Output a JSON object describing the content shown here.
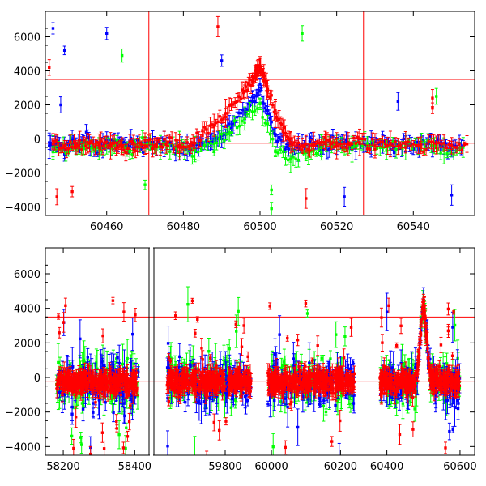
{
  "chart_data": [
    {
      "type": "scatter",
      "panel": "top",
      "xlim": [
        60444,
        60556
      ],
      "ylim": [
        -4500,
        7500
      ],
      "xticks": [
        60460,
        60480,
        60500,
        60520,
        60540
      ],
      "yticks": [
        -4000,
        -2000,
        0,
        2000,
        4000,
        6000
      ],
      "xtick_labels": [
        "60460",
        "60480",
        "60500",
        "60520",
        "60540"
      ],
      "ytick_labels": [
        "−4000",
        "−2000",
        "0",
        "2000",
        "4000",
        "6000"
      ],
      "hlines": [
        3500,
        -250
      ],
      "vlines": [
        60471,
        60527
      ],
      "colors": {
        "blue": "#0000ff",
        "green": "#00ff00",
        "red": "#ff0000",
        "ref": "#ff0000"
      },
      "series": [
        {
          "color": "blue",
          "x": [
            60445,
            60447,
            60449,
            60451,
            60453,
            60455,
            60457,
            60459,
            60461,
            60463,
            60465,
            60467,
            60469,
            60472,
            60475,
            60478,
            60481,
            60484,
            60487,
            60490,
            60493,
            60496,
            60498,
            60500,
            60502,
            60504,
            60507,
            60510,
            60513,
            60516,
            60519,
            60522,
            60525,
            60529,
            60532,
            60535,
            60538,
            60541,
            60544,
            60547,
            60550,
            60553
          ],
          "y": [
            -400,
            -300,
            -600,
            -200,
            -500,
            300,
            -700,
            -400,
            -300,
            -200,
            -500,
            -300,
            -400,
            -200,
            -300,
            -600,
            -500,
            -300,
            -200,
            200,
            800,
            1600,
            2200,
            2800,
            1700,
            200,
            -300,
            -500,
            -200,
            -400,
            -300,
            -200,
            -400,
            -300,
            -200,
            -500,
            -300,
            -400,
            -200,
            -300,
            -600,
            -400
          ]
        },
        {
          "color": "green",
          "x": [
            60446,
            60450,
            60454,
            60458,
            60462,
            60466,
            60470,
            60474,
            60479,
            60483,
            60488,
            60492,
            60496,
            60500,
            60504,
            60508,
            60512,
            60516,
            60520,
            60524,
            60528,
            60533,
            60538,
            60543,
            60548,
            60553
          ],
          "y": [
            -500,
            -800,
            -300,
            -600,
            -400,
            -700,
            -300,
            -500,
            -400,
            -600,
            -300,
            300,
            1200,
            2100,
            -700,
            -1200,
            -800,
            -500,
            -400,
            -600,
            -300,
            -500,
            -400,
            -300,
            -700,
            -500
          ]
        },
        {
          "color": "red",
          "x": [
            60446,
            60449,
            60452,
            60455,
            60458,
            60461,
            60464,
            60467,
            60470,
            60473,
            60476,
            60479,
            60482,
            60485,
            60488,
            60491,
            60494,
            60496,
            60498,
            60499,
            60500,
            60501,
            60502,
            60504,
            60506,
            60508,
            60511,
            60514,
            60517,
            60520,
            60523,
            60526,
            60530,
            60534,
            60538,
            60542,
            60546,
            60550,
            60554
          ],
          "y": [
            -300,
            -400,
            -500,
            -200,
            -300,
            -400,
            -500,
            -300,
            -400,
            -300,
            -200,
            -500,
            -400,
            200,
            800,
            1500,
            2200,
            2800,
            3400,
            3900,
            4300,
            3700,
            2800,
            1500,
            500,
            -200,
            -400,
            -300,
            -200,
            -400,
            -300,
            -200,
            -400,
            -300,
            -200,
            -500,
            -300,
            -400,
            -300
          ]
        }
      ],
      "outliers": [
        {
          "color": "blue",
          "x": 60446,
          "y": 6500
        },
        {
          "color": "blue",
          "x": 60449,
          "y": 5200
        },
        {
          "color": "blue",
          "x": 60448,
          "y": 2000
        },
        {
          "color": "blue",
          "x": 60460,
          "y": 6200
        },
        {
          "color": "blue",
          "x": 60490,
          "y": 4600
        },
        {
          "color": "blue",
          "x": 60536,
          "y": 2200
        },
        {
          "color": "blue",
          "x": 60522,
          "y": -3400
        },
        {
          "color": "blue",
          "x": 60550,
          "y": -3300
        },
        {
          "color": "green",
          "x": 60464,
          "y": 4900
        },
        {
          "color": "green",
          "x": 60470,
          "y": -2700
        },
        {
          "color": "green",
          "x": 60503,
          "y": -3000
        },
        {
          "color": "green",
          "x": 60503,
          "y": -4100
        },
        {
          "color": "green",
          "x": 60511,
          "y": 6200
        },
        {
          "color": "green",
          "x": 60546,
          "y": 2500
        },
        {
          "color": "red",
          "x": 60445,
          "y": 4200
        },
        {
          "color": "red",
          "x": 60447,
          "y": -3400
        },
        {
          "color": "red",
          "x": 60451,
          "y": -3100
        },
        {
          "color": "red",
          "x": 60489,
          "y": 6600
        },
        {
          "color": "red",
          "x": 60512,
          "y": -3500
        },
        {
          "color": "red",
          "x": 60545,
          "y": 2400
        },
        {
          "color": "red",
          "x": 60545,
          "y": 1800
        }
      ]
    },
    {
      "type": "scatter",
      "panel": "bottom",
      "xlim": [
        58150,
        60640
      ],
      "ylim": [
        -4500,
        7500
      ],
      "xticks": [
        58200,
        58400,
        59800,
        60000,
        60200,
        60400,
        60600
      ],
      "yticks": [
        -4000,
        -2000,
        0,
        2000,
        4000,
        6000
      ],
      "xtick_labels": [
        "58200",
        "58400",
        "59800",
        "60000",
        "60200",
        "60400",
        "60600"
      ],
      "ytick_labels": [
        "−4000",
        "−2000",
        "0",
        "2000",
        "4000",
        "6000"
      ],
      "hlines": [
        3500,
        -250
      ],
      "colors": {
        "blue": "#0000ff",
        "green": "#00ff00",
        "red": "#ff0000",
        "ref": "#ff0000"
      },
      "observing_seasons": [
        [
          58180,
          58410
        ],
        [
          59620,
          59880
        ],
        [
          59990,
          60240
        ],
        [
          60380,
          60600
        ]
      ],
      "event_peak": {
        "x": 60500,
        "y": 4500
      }
    }
  ]
}
